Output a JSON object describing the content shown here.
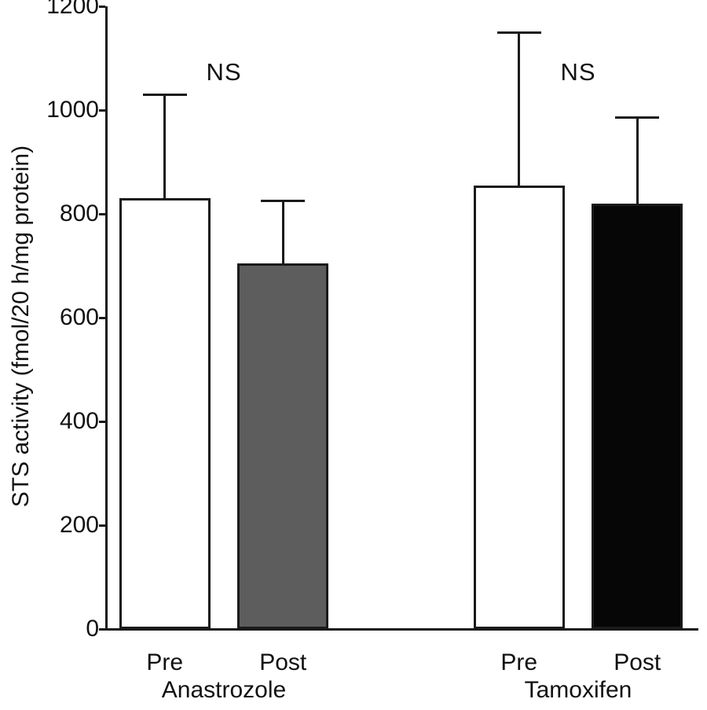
{
  "chart_data": {
    "type": "bar",
    "title": "",
    "xlabel": "",
    "ylabel": "STS activity (fmol/20 h/mg protein)",
    "ylim": [
      0,
      1200
    ],
    "yticks": [
      0,
      200,
      400,
      600,
      800,
      1000,
      1200
    ],
    "grid": false,
    "legend": "none",
    "error_bars": "upper SD only, capped",
    "colors": {
      "axis": "#1a1a1a",
      "bar_outline": "#1a1a1a",
      "pre_fill": "#ffffff",
      "post_anastrozole_fill": "#5d5d5d",
      "post_tamoxifen_fill": "#060606",
      "background": "#ffffff",
      "text": "#111111"
    },
    "groups": [
      {
        "label": "Anastrozole",
        "annotation": "NS",
        "bars": [
          {
            "label": "Pre",
            "value": 830,
            "error_upper": 200,
            "fill": "#ffffff"
          },
          {
            "label": "Post",
            "value": 705,
            "error_upper": 120,
            "fill": "#5d5d5d"
          }
        ]
      },
      {
        "label": "Tamoxifen",
        "annotation": "NS",
        "bars": [
          {
            "label": "Pre",
            "value": 855,
            "error_upper": 295,
            "fill": "#ffffff"
          },
          {
            "label": "Post",
            "value": 820,
            "error_upper": 165,
            "fill": "#060606"
          }
        ]
      }
    ]
  }
}
